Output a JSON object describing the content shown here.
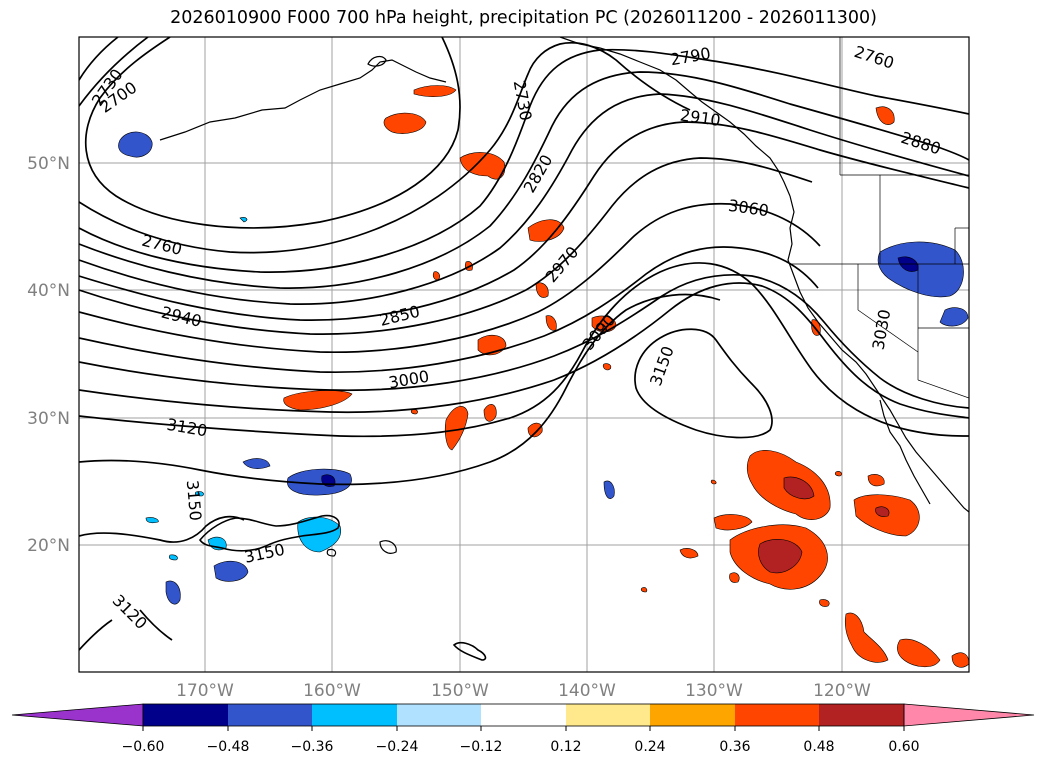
{
  "title": "2026010900 F000 700 hPa height, precipitation PC (2026011200 - 2026011300)",
  "lat_labels": [
    "50°N",
    "40°N",
    "30°N",
    "20°N"
  ],
  "lon_labels": [
    "170°W",
    "160°W",
    "150°W",
    "140°W",
    "130°W",
    "120°W"
  ],
  "contour_labels": [
    "2730",
    "2700",
    "2730",
    "2790",
    "2760",
    "2820",
    "2910",
    "2880",
    "3060",
    "2760",
    "2970",
    "2850",
    "2940",
    "3090",
    "3030",
    "3000",
    "3150",
    "3120",
    "3150",
    "3150",
    "3120"
  ],
  "colorbar": {
    "ticks": [
      "−0.60",
      "−0.48",
      "−0.36",
      "−0.24",
      "−0.12",
      "0.12",
      "0.24",
      "0.36",
      "0.48",
      "0.60"
    ],
    "colors": [
      "#9933cc",
      "#00008b",
      "#3355cc",
      "#00bfff",
      "#b0e2ff",
      "#ffffff",
      "#ffe98c",
      "#ffa500",
      "#ff4500",
      "#b22222",
      "#ff88aa"
    ]
  },
  "map": {
    "projection": "lat-lon",
    "lat_range": [
      10,
      60
    ],
    "lon_range": [
      -180,
      -110
    ],
    "gridlines": true,
    "contour_field": "700 hPa height",
    "shaded_field": "precipitation PC"
  }
}
